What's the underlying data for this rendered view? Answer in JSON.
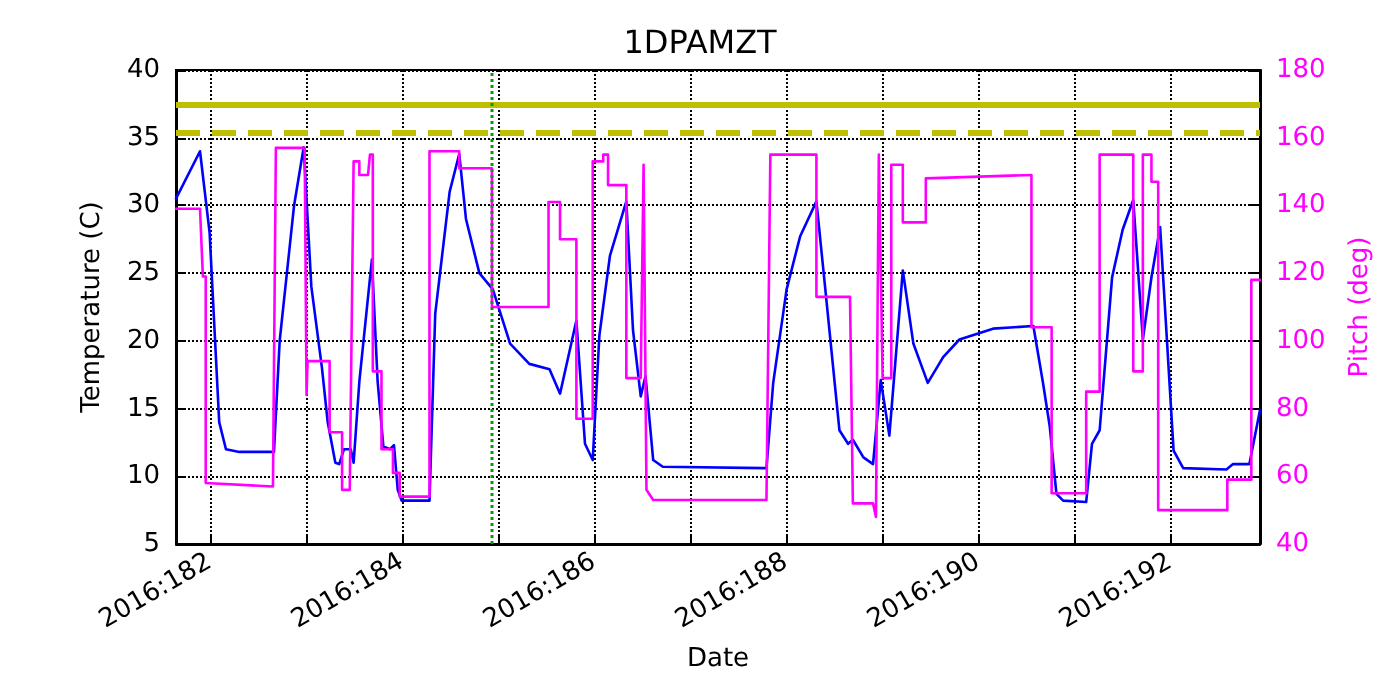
{
  "chart_data": {
    "type": "line",
    "title": "1DPAMZT",
    "xlabel": "Date",
    "ylabel": "Temperature (C)",
    "y2label": "Pitch (deg)",
    "xlim": [
      "2016-06-29T15:36",
      "2016-07-10T22:34"
    ],
    "xticks": [
      {
        "value": "2016-06-30",
        "label": "2016:182"
      },
      {
        "value": "2016-07-01",
        "label": null
      },
      {
        "value": "2016-07-02",
        "label": "2016:184"
      },
      {
        "value": "2016-07-03",
        "label": null
      },
      {
        "value": "2016-07-04",
        "label": "2016:186"
      },
      {
        "value": "2016-07-05",
        "label": null
      },
      {
        "value": "2016-07-06",
        "label": "2016:188"
      },
      {
        "value": "2016-07-07",
        "label": null
      },
      {
        "value": "2016-07-08",
        "label": "2016:190"
      },
      {
        "value": "2016-07-09",
        "label": null
      },
      {
        "value": "2016-07-10",
        "label": "2016:192"
      }
    ],
    "ylim": [
      5,
      40
    ],
    "yticks": [
      5,
      10,
      15,
      20,
      25,
      30,
      35,
      40
    ],
    "y2lim": [
      40,
      180
    ],
    "y2ticks": [
      40,
      60,
      80,
      100,
      120,
      140,
      160,
      180
    ],
    "grid": true,
    "marker": "none",
    "line_style": "solid",
    "series": [
      {
        "color": "#0000ff",
        "x": [
          "2016-06-29T15:36",
          "2016-06-29T21:36",
          "2016-06-30T00:00",
          "2016-06-30T02:24",
          "2016-06-30T04:05",
          "2016-06-30T07:26",
          "2016-06-30T16:05",
          "2016-06-30T17:31",
          "2016-06-30T21:07",
          "2016-06-30T23:31",
          "2016-07-01T01:26",
          "2016-07-01T04:05",
          "2016-07-01T05:31",
          "2016-07-01T07:26",
          "2016-07-01T08:24",
          "2016-07-01T09:36",
          "2016-07-01T11:17",
          "2016-07-01T12:00",
          "2016-07-01T13:26",
          "2016-07-01T16:34",
          "2016-07-01T18:00",
          "2016-07-01T19:26",
          "2016-07-01T21:07",
          "2016-07-01T22:05",
          "2016-07-01T23:02",
          "2016-07-02T00:00",
          "2016-07-02T06:58",
          "2016-07-02T08:24",
          "2016-07-02T12:00",
          "2016-07-02T14:24",
          "2016-07-02T16:05",
          "2016-07-02T19:26",
          "2016-07-02T22:48",
          "2016-07-03T03:07",
          "2016-07-03T07:55",
          "2016-07-03T12:58",
          "2016-07-03T15:36",
          "2016-07-03T19:41",
          "2016-07-03T21:50",
          "2016-07-03T23:46",
          "2016-07-04T01:26",
          "2016-07-04T04:05",
          "2016-07-04T08:10",
          "2016-07-04T09:50",
          "2016-07-04T11:46",
          "2016-07-04T12:58",
          "2016-07-04T14:53",
          "2016-07-04T17:17",
          "2016-07-05T19:12",
          "2016-07-05T20:53",
          "2016-07-06T00:14",
          "2016-07-06T03:36",
          "2016-07-06T07:41",
          "2016-07-06T10:05",
          "2016-07-06T13:26",
          "2016-07-06T15:36",
          "2016-07-06T16:48",
          "2016-07-06T19:26",
          "2016-07-06T21:50",
          "2016-07-06T23:46",
          "2016-07-07T01:55",
          "2016-07-07T05:17",
          "2016-07-07T07:55",
          "2016-07-07T11:31",
          "2016-07-07T15:22",
          "2016-07-07T19:26",
          "2016-07-08T03:50",
          "2016-07-08T13:55",
          "2016-07-08T16:19",
          "2016-07-08T18:00",
          "2016-07-08T19:41",
          "2016-07-08T21:22",
          "2016-07-09T03:07",
          "2016-07-09T04:34",
          "2016-07-09T06:29",
          "2016-07-09T09:36",
          "2016-07-09T12:14",
          "2016-07-09T14:53",
          "2016-07-09T17:17",
          "2016-07-09T19:26",
          "2016-07-09T21:36",
          "2016-07-10T00:58",
          "2016-07-10T03:22",
          "2016-07-10T14:10",
          "2016-07-10T15:50",
          "2016-07-10T19:55",
          "2016-07-10T22:34"
        ],
        "values": [
          30.5,
          34,
          28,
          14,
          12,
          11.8,
          11.8,
          20,
          30,
          34.3,
          24,
          18,
          14,
          11,
          10.9,
          12,
          12,
          11,
          17,
          26,
          17,
          12.2,
          12,
          12.3,
          9,
          8.2,
          8.2,
          22,
          31,
          33.8,
          29,
          25,
          23.8,
          19.8,
          18.3,
          17.9,
          16.1,
          21.5,
          12.4,
          11.2,
          20.4,
          26.3,
          30.3,
          20.8,
          15.9,
          17.4,
          11.2,
          10.7,
          10.6,
          16.9,
          23.8,
          27.7,
          30.3,
          23.3,
          13.4,
          12.4,
          12.7,
          11.4,
          10.9,
          17.1,
          13,
          25.2,
          19.8,
          16.9,
          18.8,
          20.1,
          20.9,
          21.1,
          16.9,
          13.7,
          8.7,
          8.2,
          8.1,
          12.4,
          13.4,
          24.7,
          28.2,
          30.4,
          20.1,
          24.7,
          28.4,
          11.9,
          10.6,
          10.5,
          10.9,
          10.9,
          14.9
        ]
      },
      {
        "color": "#ff00ff",
        "axis": "y2",
        "x": [
          "2016-06-29T15:36",
          "2016-06-29T21:36",
          "2016-06-29T22:19",
          "2016-06-29T23:02",
          "2016-06-29T23:02",
          "2016-06-30T15:50",
          "2016-06-30T16:34",
          "2016-06-30T23:46",
          "2016-07-01T00:14",
          "2016-07-01T00:29",
          "2016-07-01T06:00",
          "2016-07-01T06:00",
          "2016-07-01T09:07",
          "2016-07-01T09:07",
          "2016-07-01T11:02",
          "2016-07-01T12:00",
          "2016-07-01T13:26",
          "2016-07-01T13:26",
          "2016-07-01T15:36",
          "2016-07-01T16:05",
          "2016-07-01T16:48",
          "2016-07-01T16:48",
          "2016-07-01T18:58",
          "2016-07-01T18:58",
          "2016-07-01T21:50",
          "2016-07-01T21:50",
          "2016-07-01T23:31",
          "2016-07-01T23:31",
          "2016-07-02T06:58",
          "2016-07-02T06:58",
          "2016-07-02T14:24",
          "2016-07-02T14:24",
          "2016-07-02T22:34",
          "2016-07-02T22:34",
          "2016-07-03T12:43",
          "2016-07-03T12:43",
          "2016-07-03T15:36",
          "2016-07-03T15:36",
          "2016-07-03T19:41",
          "2016-07-03T19:41",
          "2016-07-03T23:46",
          "2016-07-03T23:46",
          "2016-07-04T02:24",
          "2016-07-04T02:24",
          "2016-07-04T03:36",
          "2016-07-04T03:36",
          "2016-07-04T08:10",
          "2016-07-04T08:10",
          "2016-07-04T11:46",
          "2016-07-04T12:29",
          "2016-07-04T13:12",
          "2016-07-04T14:53",
          "2016-07-05T19:12",
          "2016-07-05T20:10",
          "2016-07-06T07:41",
          "2016-07-06T07:41",
          "2016-07-06T16:05",
          "2016-07-06T16:48",
          "2016-07-06T21:50",
          "2016-07-06T22:34",
          "2016-07-06T23:17",
          "2016-07-07T00:14",
          "2016-07-07T02:24",
          "2016-07-07T02:24",
          "2016-07-07T05:17",
          "2016-07-07T05:17",
          "2016-07-07T11:02",
          "2016-07-07T11:02",
          "2016-07-08T13:26",
          "2016-07-08T13:26",
          "2016-07-08T18:29",
          "2016-07-08T18:29",
          "2016-07-09T03:07",
          "2016-07-09T03:07",
          "2016-07-09T06:29",
          "2016-07-09T06:29",
          "2016-07-09T14:53",
          "2016-07-09T14:53",
          "2016-07-09T17:17",
          "2016-07-09T17:17",
          "2016-07-09T19:26",
          "2016-07-09T19:26",
          "2016-07-09T21:07",
          "2016-07-09T21:07",
          "2016-07-10T14:24",
          "2016-07-10T14:24",
          "2016-07-10T20:24",
          "2016-07-10T20:24",
          "2016-07-10T22:34"
        ],
        "values": [
          139,
          139,
          119,
          119,
          58,
          57,
          157,
          157,
          84,
          94,
          94,
          73,
          73,
          56,
          56,
          153,
          153,
          149,
          149,
          155,
          155,
          91,
          91,
          68,
          68,
          61,
          61,
          54,
          54,
          156,
          156,
          151,
          151,
          110,
          110,
          141,
          141,
          130,
          130,
          77,
          77,
          153,
          153,
          155,
          155,
          146,
          146,
          89,
          89,
          152,
          56,
          53,
          53,
          155,
          155,
          113,
          113,
          52,
          52,
          48,
          155,
          89,
          89,
          152,
          152,
          135,
          135,
          148,
          149,
          104,
          104,
          55,
          55,
          85,
          85,
          155,
          155,
          91,
          91,
          155,
          155,
          147,
          147,
          50,
          50,
          59,
          59,
          118,
          118
        ]
      }
    ],
    "ref_lines": [
      {
        "axis": "y",
        "value": 37.5,
        "color": "#bfbf00",
        "line_style": "solid"
      },
      {
        "axis": "y",
        "value": 35.4,
        "color": "#bfbf00",
        "line_style": "dashed"
      },
      {
        "axis": "x",
        "value": "2016-07-02T22:19",
        "color": "#00a000",
        "line_style": "dotted"
      }
    ]
  }
}
